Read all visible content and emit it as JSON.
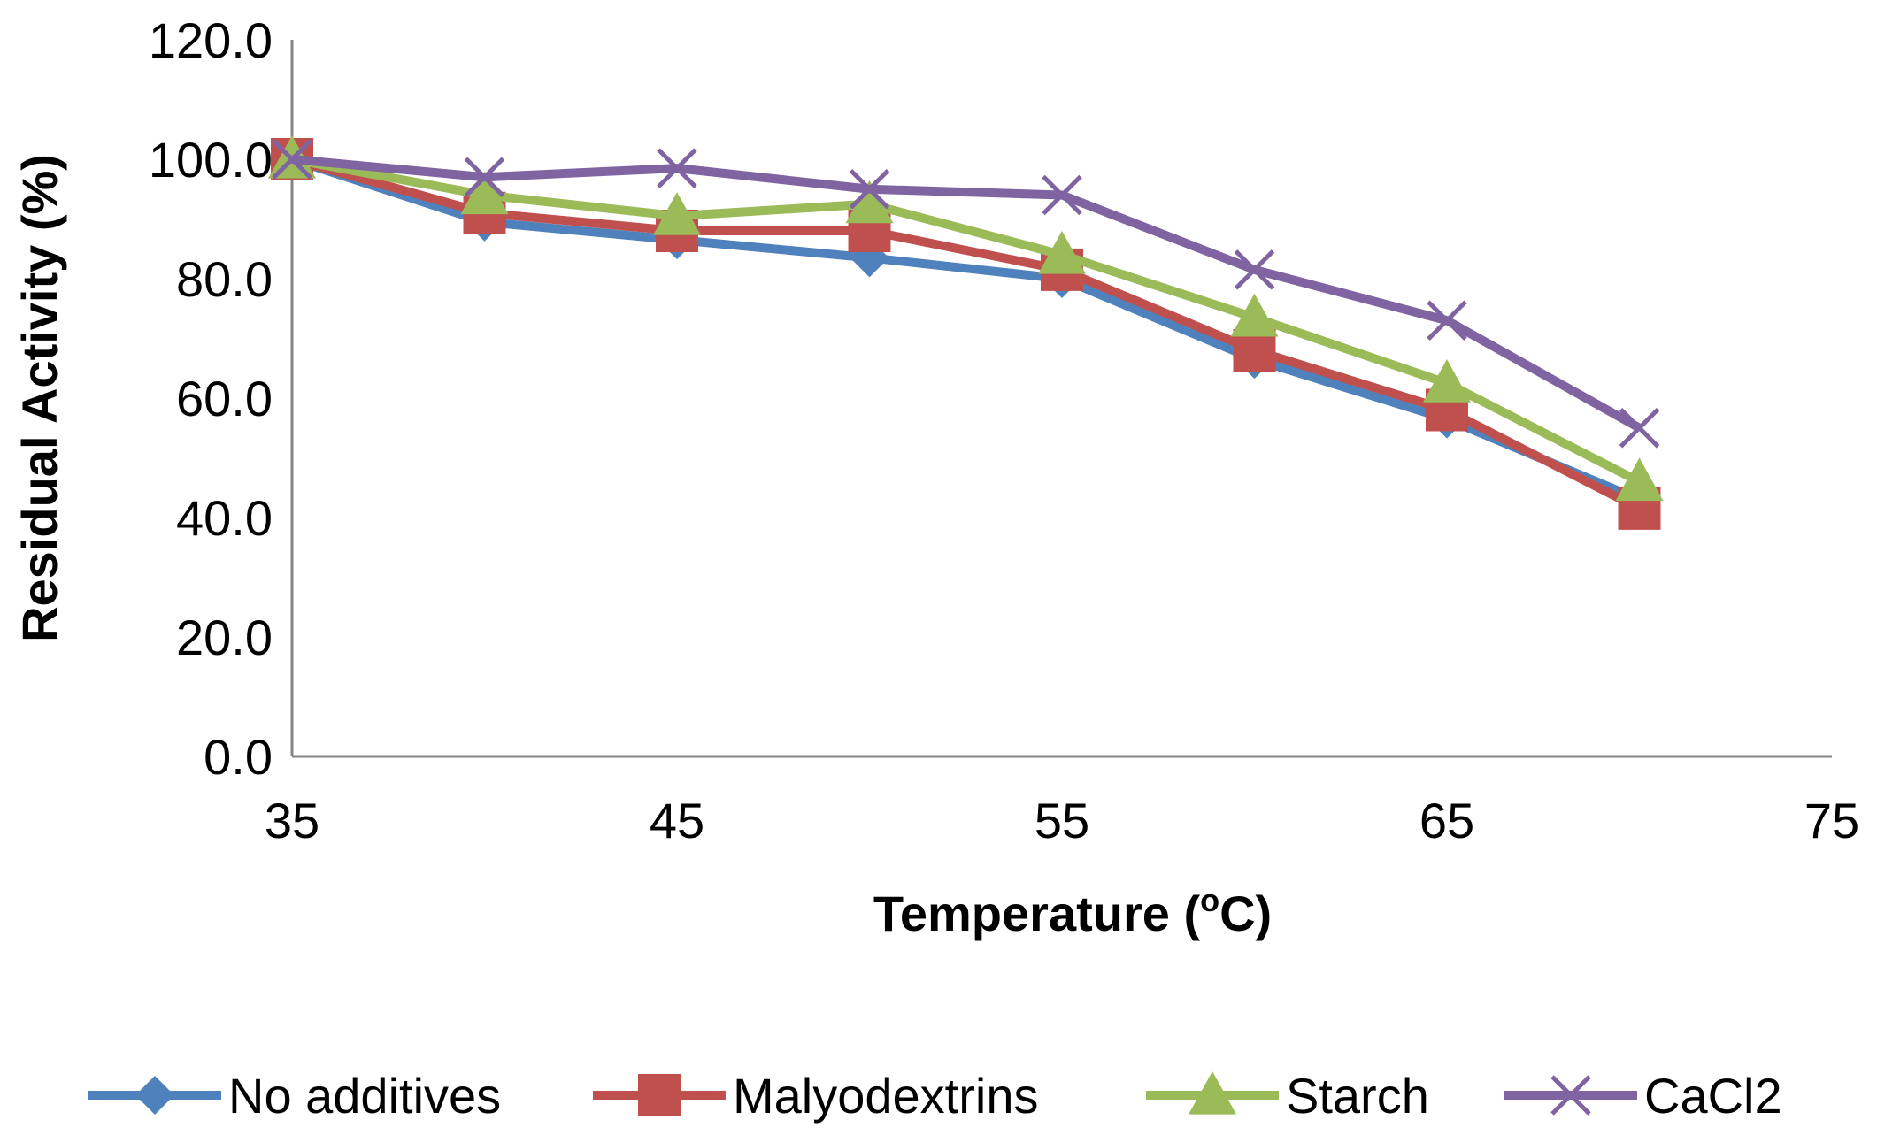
{
  "chart_data": {
    "type": "line",
    "xlabel": "Temperature (",
    "xlabel_superscript": "o",
    "xlabel_suffix": "C)",
    "ylabel": "Residual Activity (%)",
    "xlim": [
      35,
      75
    ],
    "ylim": [
      0,
      120
    ],
    "x_ticks": [
      "35",
      "45",
      "55",
      "65",
      "75"
    ],
    "y_ticks": [
      "0.0",
      "20.0",
      "40.0",
      "60.0",
      "80.0",
      "100.0",
      "120.0"
    ],
    "x": [
      35,
      40,
      45,
      50,
      55,
      60,
      65,
      70
    ],
    "grid": false,
    "legend_position": "bottom",
    "series": [
      {
        "name": "No additives",
        "color": "#4F81BD",
        "marker": "diamond",
        "values": [
          100,
          89.5,
          86.5,
          83.5,
          80,
          66.5,
          56.5,
          43
        ]
      },
      {
        "name": "Malyodextrins",
        "color": "#C0504D",
        "marker": "square",
        "values": [
          100,
          91,
          88,
          88,
          81.5,
          68,
          58,
          41.5
        ]
      },
      {
        "name": "Starch",
        "color": "#9BBB59",
        "marker": "triangle",
        "values": [
          100,
          94,
          90.5,
          92.5,
          84,
          73.5,
          62.5,
          46
        ]
      },
      {
        "name": "CaCl2",
        "color": "#8064A2",
        "marker": "x",
        "values": [
          100,
          97,
          98.5,
          95,
          94,
          81.5,
          73,
          55
        ]
      }
    ]
  }
}
